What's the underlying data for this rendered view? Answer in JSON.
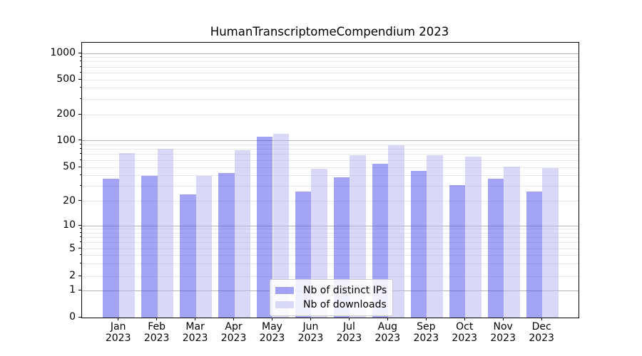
{
  "chart_data": {
    "type": "bar",
    "title": "HumanTranscriptomeCompendium 2023",
    "categories": [
      "Jan",
      "Feb",
      "Mar",
      "Apr",
      "May",
      "Jun",
      "Jul",
      "Aug",
      "Sep",
      "Oct",
      "Nov",
      "Dec"
    ],
    "x_year_line": "2023",
    "series": [
      {
        "name": "Nb of distinct IPs",
        "color": "rgba(73,73,233,0.5)",
        "values": [
          37,
          40,
          24,
          43,
          110,
          26,
          38,
          55,
          45,
          31,
          37,
          26
        ]
      },
      {
        "name": "Nb of downloads",
        "color": "rgba(179,179,239,0.5)",
        "values": [
          72,
          81,
          40,
          78,
          120,
          48,
          68,
          89,
          68,
          66,
          51,
          49
        ]
      }
    ],
    "yscale": "symlog",
    "ylim": [
      0,
      1300
    ],
    "y_ticks": [
      0,
      1,
      2,
      5,
      10,
      20,
      50,
      100,
      200,
      500,
      1000
    ],
    "grid": {
      "major_lines": [
        1,
        10,
        100,
        1000
      ],
      "minor_subs": [
        2,
        3,
        4,
        5,
        6,
        7,
        8,
        9
      ]
    },
    "legend_position": "inside-bottom-center",
    "colors": {
      "major_grid": "#b3b3b3",
      "minor_grid": "#e7e7e7",
      "spine": "#000000",
      "background": "#ffffff"
    }
  }
}
